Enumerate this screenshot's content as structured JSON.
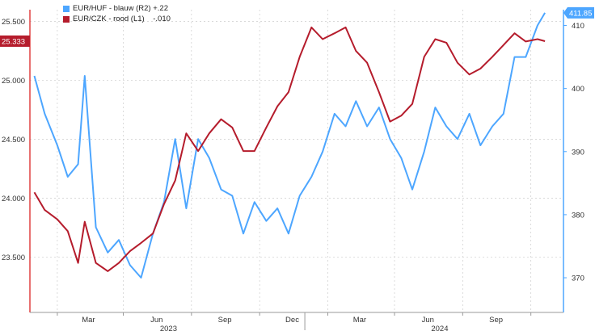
{
  "chart_data": {
    "type": "line",
    "grid": true,
    "x_ticks": [
      "Mar",
      "Jun",
      "Sep",
      "Dec",
      "Mar",
      "Jun",
      "Sep"
    ],
    "x_years": [
      "2023",
      "2024"
    ],
    "left_axis": {
      "ticks": [
        "25.500",
        "25.000",
        "24.500",
        "24.000",
        "23.500"
      ],
      "ylim": [
        23.03,
        25.6
      ]
    },
    "right_axis": {
      "ticks": [
        "410",
        "400",
        "390",
        "380",
        "370"
      ],
      "ylim": [
        364.5,
        412.5
      ]
    },
    "series": [
      {
        "name": "EUR/HUF - blauw (R2)",
        "change": "+.22",
        "axis": "right",
        "color": "#4da6ff",
        "last_value": "411.85",
        "x": [
          "2023-01-01",
          "2023-01-15",
          "2023-02-01",
          "2023-02-15",
          "2023-03-01",
          "2023-03-10",
          "2023-03-25",
          "2023-04-10",
          "2023-04-25",
          "2023-05-10",
          "2023-05-25",
          "2023-06-10",
          "2023-06-25",
          "2023-07-10",
          "2023-07-25",
          "2023-08-10",
          "2023-08-25",
          "2023-09-10",
          "2023-09-25",
          "2023-10-10",
          "2023-10-25",
          "2023-11-10",
          "2023-11-25",
          "2023-12-10",
          "2023-12-25",
          "2024-01-10",
          "2024-01-25",
          "2024-02-10",
          "2024-02-25",
          "2024-03-10",
          "2024-03-25",
          "2024-04-10",
          "2024-04-25",
          "2024-05-10",
          "2024-05-25",
          "2024-06-10",
          "2024-06-25",
          "2024-07-10",
          "2024-07-25",
          "2024-08-10",
          "2024-08-25",
          "2024-09-10",
          "2024-09-25",
          "2024-10-10",
          "2024-10-25",
          "2024-11-10",
          "2024-11-20"
        ],
        "values": [
          402,
          396,
          391,
          386,
          388,
          402,
          378,
          374,
          376,
          372,
          370,
          377,
          382,
          392,
          381,
          392,
          389,
          384,
          383,
          377,
          382,
          379,
          381,
          377,
          383,
          386,
          390,
          396,
          394,
          398,
          394,
          397,
          392,
          389,
          384,
          390,
          397,
          394,
          392,
          396,
          391,
          394,
          396,
          405,
          405,
          410,
          412
        ]
      },
      {
        "name": "EUR/CZK - rood (L1)",
        "change": "-.010",
        "axis": "left",
        "color": "#b51c2c",
        "last_value": "25.333",
        "x": [
          "2023-01-01",
          "2023-01-15",
          "2023-02-01",
          "2023-02-15",
          "2023-03-01",
          "2023-03-10",
          "2023-03-25",
          "2023-04-10",
          "2023-04-25",
          "2023-05-10",
          "2023-05-25",
          "2023-06-10",
          "2023-06-25",
          "2023-07-10",
          "2023-07-25",
          "2023-08-10",
          "2023-08-25",
          "2023-09-10",
          "2023-09-25",
          "2023-10-10",
          "2023-10-25",
          "2023-11-10",
          "2023-11-25",
          "2023-12-10",
          "2023-12-25",
          "2024-01-10",
          "2024-01-25",
          "2024-02-10",
          "2024-02-25",
          "2024-03-10",
          "2024-03-25",
          "2024-04-10",
          "2024-04-25",
          "2024-05-10",
          "2024-05-25",
          "2024-06-10",
          "2024-06-25",
          "2024-07-10",
          "2024-07-25",
          "2024-08-10",
          "2024-08-25",
          "2024-09-10",
          "2024-09-25",
          "2024-10-10",
          "2024-10-25",
          "2024-11-10",
          "2024-11-20"
        ],
        "values": [
          24.05,
          23.9,
          23.82,
          23.72,
          23.45,
          23.8,
          23.45,
          23.38,
          23.45,
          23.55,
          23.62,
          23.7,
          23.95,
          24.15,
          24.55,
          24.4,
          24.55,
          24.67,
          24.6,
          24.4,
          24.4,
          24.6,
          24.78,
          24.9,
          25.2,
          25.45,
          25.35,
          25.4,
          25.45,
          25.25,
          25.15,
          24.9,
          24.65,
          24.7,
          24.8,
          25.2,
          25.35,
          25.32,
          25.15,
          25.05,
          25.1,
          25.2,
          25.3,
          25.4,
          25.33,
          25.35,
          25.333
        ]
      }
    ]
  }
}
